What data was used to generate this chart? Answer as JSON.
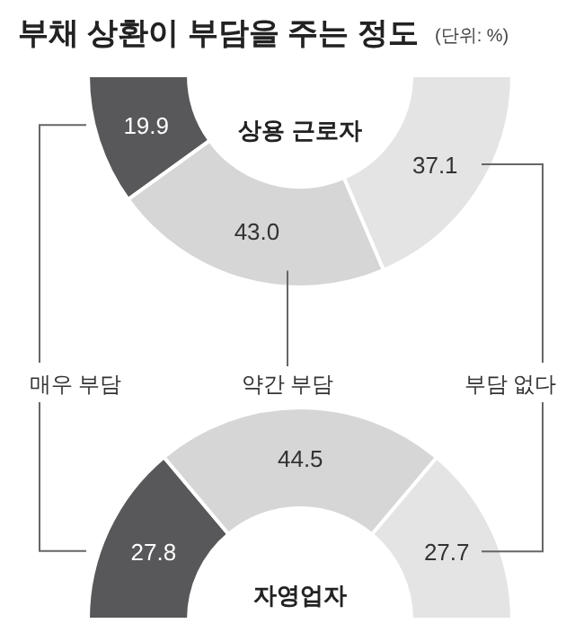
{
  "chart_data": [
    {
      "type": "donut",
      "title": "상용 근로자",
      "categories": [
        "매우 부담",
        "약간 부담",
        "부담 없다"
      ],
      "values": [
        19.9,
        43.0,
        37.1
      ],
      "value_labels": [
        "19.9",
        "43.0",
        "37.1"
      ],
      "colors": [
        "#58585a",
        "#d6d6d6",
        "#e4e4e4"
      ],
      "annotations": [
        "부채 상환이 부담을 주는 정도",
        "(단위: %)"
      ]
    },
    {
      "type": "donut",
      "title": "자영업자",
      "categories": [
        null,
        null,
        null
      ],
      "values": [
        27.8,
        44.5,
        27.7
      ],
      "value_labels": [
        "27.8",
        "44.5",
        "27.7"
      ],
      "colors": [
        "#58585a",
        "#d6d6d6",
        "#e4e4e4"
      ]
    }
  ]
}
